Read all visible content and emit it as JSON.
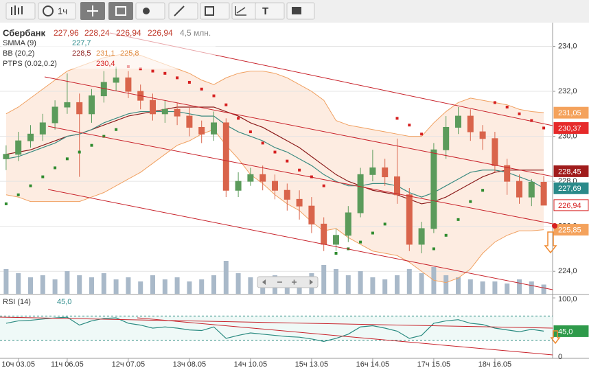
{
  "toolbar": {
    "interval": "1ч",
    "text_tool": "T"
  },
  "legend": {
    "instrument": "Сбербанк",
    "ohlc": [
      "227,96",
      "228,24",
      "226,94",
      "226,94"
    ],
    "volume": "4,5 млн.",
    "smma": {
      "name": "SMMA (9)",
      "value": "227,7"
    },
    "bb": {
      "name": "BB (20,2)",
      "values": [
        "228,5",
        "231,1",
        "225,8"
      ]
    },
    "ptps": {
      "name": "PTPS (0.02,0.2)",
      "value": "230,4"
    },
    "rsi": {
      "name": "RSI (14)",
      "value": "45,0"
    }
  },
  "chart_data": {
    "type": "candlestick",
    "categories": [
      null,
      "10ч 03.05",
      null,
      null,
      null,
      "11ч 06.05",
      null,
      null,
      null,
      null,
      "12ч 07.05",
      null,
      null,
      null,
      null,
      "13ч 08.05",
      null,
      null,
      null,
      null,
      "14ч 10.05",
      null,
      null,
      null,
      null,
      "15ч 13.05",
      null,
      null,
      null,
      null,
      "16ч 14.05",
      null,
      null,
      null,
      null,
      "17ч 15.05",
      null,
      null,
      null,
      null,
      "18ч 16.05",
      null,
      null,
      null,
      null
    ],
    "open": [
      229.0,
      229.2,
      229.8,
      230.1,
      230.6,
      231.3,
      231.5,
      231.0,
      231.8,
      232.4,
      232.6,
      232.0,
      231.6,
      231.0,
      231.2,
      230.9,
      230.4,
      230.1,
      230.6,
      227.6,
      228.0,
      228.3,
      228.0,
      227.6,
      227.2,
      226.9,
      226.1,
      225.2,
      225.6,
      226.6,
      228.3,
      228.6,
      228.2,
      227.4,
      225.2,
      225.9,
      229.4,
      230.4,
      230.9,
      230.2,
      229.9,
      228.7,
      228.0,
      227.3,
      227.96
    ],
    "high": [
      229.6,
      230.2,
      230.5,
      231.0,
      231.6,
      232.8,
      231.9,
      232.1,
      232.9,
      233.1,
      232.9,
      232.3,
      231.9,
      231.6,
      231.5,
      231.3,
      230.7,
      231.1,
      230.8,
      228.4,
      228.6,
      228.7,
      228.3,
      227.9,
      227.6,
      227.3,
      226.4,
      225.9,
      226.9,
      228.6,
      229.4,
      229.0,
      229.9,
      227.7,
      226.2,
      229.7,
      230.9,
      231.3,
      231.2,
      230.5,
      230.2,
      229.0,
      228.3,
      228.1,
      228.24
    ],
    "low": [
      228.5,
      228.9,
      229.5,
      229.8,
      230.3,
      231.0,
      228.2,
      230.6,
      231.5,
      232.0,
      231.7,
      231.2,
      230.7,
      230.6,
      230.5,
      230.0,
      229.7,
      229.8,
      227.3,
      227.3,
      227.8,
      227.6,
      227.2,
      226.7,
      226.3,
      225.7,
      224.9,
      224.9,
      225.3,
      226.4,
      228.0,
      227.8,
      227.0,
      224.9,
      224.8,
      225.7,
      229.0,
      230.1,
      229.8,
      229.4,
      228.4,
      227.4,
      227.0,
      226.9,
      226.94
    ],
    "close": [
      229.2,
      229.8,
      230.1,
      230.6,
      231.3,
      231.5,
      231.0,
      231.8,
      232.4,
      232.6,
      232.0,
      231.6,
      231.0,
      231.2,
      230.9,
      230.4,
      230.1,
      230.6,
      227.6,
      228.0,
      228.3,
      228.0,
      227.6,
      227.2,
      226.9,
      226.1,
      225.2,
      225.6,
      226.6,
      228.3,
      228.6,
      228.2,
      227.4,
      225.2,
      225.9,
      229.4,
      230.4,
      230.9,
      230.2,
      229.9,
      228.7,
      228.0,
      227.3,
      227.96,
      226.94
    ],
    "up_color": "#5b9b5b",
    "down_color": "#d9644b",
    "smma": {
      "color": "#3a8a80",
      "values": [
        229.0,
        229.1,
        229.3,
        229.5,
        229.7,
        230.0,
        230.1,
        230.3,
        230.6,
        230.8,
        231.0,
        231.1,
        231.1,
        231.1,
        231.1,
        231.0,
        230.9,
        230.9,
        230.5,
        230.2,
        230.0,
        229.8,
        229.5,
        229.3,
        229.0,
        228.7,
        228.3,
        228.0,
        227.8,
        227.8,
        227.9,
        227.9,
        227.8,
        227.5,
        227.3,
        227.5,
        227.8,
        228.1,
        228.4,
        228.5,
        228.5,
        228.4,
        228.2,
        228.0,
        227.7
      ]
    },
    "bb_mid": {
      "color": "#8b1a1a",
      "values": [
        229.2,
        229.3,
        229.4,
        229.6,
        229.8,
        230.0,
        230.1,
        230.3,
        230.5,
        230.7,
        230.9,
        231.0,
        231.1,
        231.2,
        231.3,
        231.3,
        231.3,
        231.3,
        231.1,
        230.9,
        230.6,
        230.4,
        230.1,
        229.8,
        229.5,
        229.1,
        228.7,
        228.3,
        228.0,
        227.8,
        227.6,
        227.5,
        227.4,
        227.2,
        227.0,
        227.1,
        227.3,
        227.6,
        227.9,
        228.2,
        228.4,
        228.5,
        228.5,
        228.5,
        228.5
      ]
    },
    "bb_upper": {
      "color": "#f0a060",
      "values": [
        231.0,
        231.3,
        231.7,
        232.1,
        232.5,
        232.9,
        233.1,
        233.3,
        233.5,
        233.6,
        233.7,
        233.6,
        233.4,
        233.2,
        233.0,
        232.8,
        232.5,
        232.3,
        232.6,
        232.8,
        232.9,
        232.9,
        232.8,
        232.6,
        232.3,
        232.0,
        231.6,
        230.7,
        230.5,
        230.4,
        230.3,
        230.2,
        230.1,
        230.0,
        230.0,
        230.6,
        231.1,
        231.5,
        231.7,
        231.6,
        231.5,
        231.4,
        231.2,
        231.1,
        231.05
      ]
    },
    "bb_lower": {
      "color": "#f0a060",
      "values": [
        227.4,
        227.3,
        227.1,
        227.1,
        227.1,
        227.1,
        227.1,
        227.3,
        227.5,
        227.8,
        228.1,
        228.4,
        228.8,
        229.2,
        229.6,
        229.8,
        230.1,
        230.3,
        229.6,
        229.0,
        228.3,
        227.9,
        227.4,
        227.0,
        226.7,
        226.2,
        225.8,
        225.9,
        225.5,
        225.2,
        224.9,
        224.8,
        224.7,
        224.4,
        224.0,
        223.6,
        223.5,
        223.7,
        224.1,
        224.8,
        225.3,
        225.6,
        225.8,
        225.8,
        225.85
      ]
    },
    "ptps": {
      "up_color": "#2e8b2e",
      "down_color": "#d62020",
      "values": [
        227.0,
        227.4,
        227.8,
        228.2,
        228.6,
        229.0,
        229.3,
        229.6,
        230.0,
        230.3,
        233.1,
        233.0,
        232.9,
        232.8,
        232.6,
        232.4,
        232.1,
        231.8,
        231.4,
        230.8,
        230.2,
        229.7,
        229.3,
        228.9,
        228.5,
        228.2,
        227.8,
        224.8,
        225.0,
        225.3,
        225.7,
        226.1,
        230.8,
        230.5,
        230.1,
        225.0,
        225.6,
        226.3,
        227.1,
        227.6,
        231.5,
        231.3,
        231.0,
        230.7,
        230.37
      ]
    },
    "volume": {
      "color": "#a9b9c9",
      "values": [
        12,
        10,
        8,
        9,
        7,
        11,
        9,
        8,
        10,
        7,
        8,
        6,
        9,
        7,
        8,
        6,
        7,
        9,
        16,
        10,
        8,
        7,
        9,
        6,
        8,
        10,
        14,
        12,
        9,
        11,
        8,
        7,
        9,
        12,
        10,
        13,
        9,
        8,
        7,
        6,
        6,
        5,
        7,
        6,
        4.5
      ]
    },
    "volume_lim": [
      0,
      30
    ],
    "ylim": [
      223,
      234.9
    ],
    "yticks": [
      {
        "value": 224,
        "label": "224,0"
      },
      {
        "value": 226,
        "label": "226,0"
      },
      {
        "value": 228,
        "label": "228,0"
      },
      {
        "value": 230,
        "label": "230,0"
      },
      {
        "value": 232,
        "label": "232,0"
      },
      {
        "value": 234,
        "label": "234,0"
      }
    ],
    "price_tags": [
      {
        "value": 231.05,
        "label": "231,05",
        "color": "#f4a25c"
      },
      {
        "value": 230.37,
        "label": "230,37",
        "color": "#e62a2a"
      },
      {
        "value": 228.45,
        "label": "228,45",
        "color": "#a01c1c"
      },
      {
        "value": 227.69,
        "label": "227,69",
        "color": "#2a8a8a"
      },
      {
        "value": 226.94,
        "label": "226,94",
        "color": "#ffffff"
      },
      {
        "value": 225.85,
        "label": "225,85",
        "color": "#f4a25c"
      }
    ],
    "rsi": {
      "color": "#2a8a80",
      "values": [
        58,
        62,
        63,
        65,
        67,
        68,
        55,
        62,
        66,
        67,
        58,
        55,
        50,
        52,
        50,
        47,
        46,
        52,
        33,
        38,
        42,
        40,
        38,
        36,
        35,
        32,
        28,
        33,
        40,
        52,
        54,
        50,
        45,
        33,
        38,
        58,
        62,
        64,
        58,
        56,
        50,
        47,
        44,
        48,
        45.0
      ]
    },
    "rsi_lim": [
      0,
      100
    ],
    "rsi_levels": [
      70,
      30
    ],
    "rsi_ticks": [
      {
        "value": 100,
        "label": "100,0"
      },
      0
    ],
    "rsi_tag": {
      "value": 45.0,
      "label": "45,0",
      "color": "#2e9a4a"
    }
  }
}
